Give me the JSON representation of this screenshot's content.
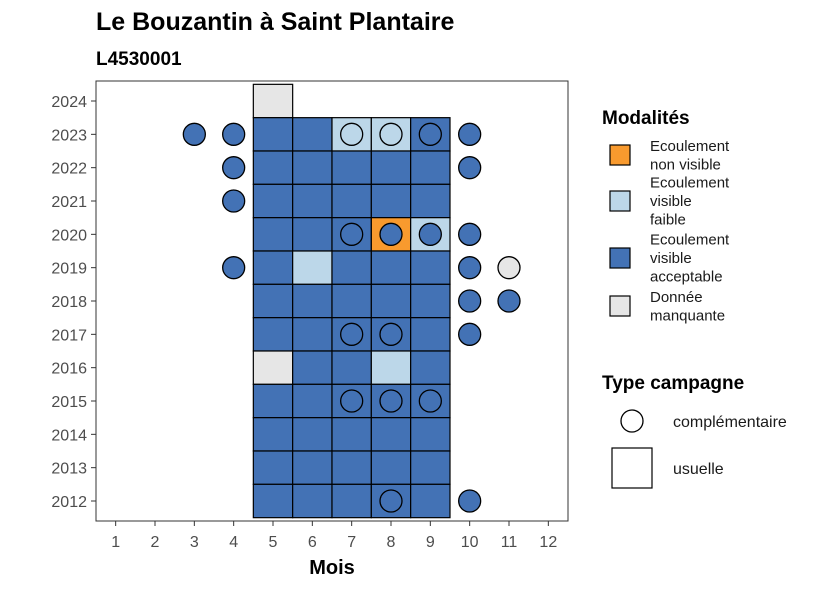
{
  "colors": {
    "non_visible": "#f89a2e",
    "visible_faible": "#bcd7e9",
    "visible_acceptable": "#4372b5",
    "manquante": "#e6e6e6"
  },
  "chart_data": {
    "type": "heatmap",
    "title": "Le Bouzantin à Saint Plantaire",
    "subtitle": "L4530001",
    "xlabel": "Mois",
    "ylabel": "",
    "x_ticks": [
      "1",
      "2",
      "3",
      "4",
      "5",
      "6",
      "7",
      "8",
      "9",
      "10",
      "11",
      "12"
    ],
    "y_ticks": [
      "2012",
      "2013",
      "2014",
      "2015",
      "2016",
      "2017",
      "2018",
      "2019",
      "2020",
      "2021",
      "2022",
      "2023",
      "2024"
    ],
    "xlim": [
      0.5,
      12.5
    ],
    "ylim": [
      2011.4,
      2024.6
    ],
    "legend": {
      "modalites_title": "Modalités",
      "modalites": [
        {
          "key": "non_visible",
          "lines": [
            "Ecoulement",
            "non visible"
          ]
        },
        {
          "key": "visible_faible",
          "lines": [
            "Ecoulement",
            "visible",
            "faible"
          ]
        },
        {
          "key": "visible_acceptable",
          "lines": [
            "Ecoulement",
            "visible",
            "acceptable"
          ]
        },
        {
          "key": "manquante",
          "lines": [
            "Donnée",
            "manquante"
          ]
        }
      ],
      "type_title": "Type campagne",
      "types": [
        {
          "key": "complementaire",
          "label": "complémentaire"
        },
        {
          "key": "usuelle",
          "label": "usuelle"
        }
      ]
    },
    "usuelle": [
      {
        "month": 5,
        "year": 2024,
        "modalite": "manquante"
      },
      {
        "month": 5,
        "year": 2023,
        "modalite": "visible_acceptable"
      },
      {
        "month": 6,
        "year": 2023,
        "modalite": "visible_acceptable"
      },
      {
        "month": 7,
        "year": 2023,
        "modalite": "visible_faible"
      },
      {
        "month": 8,
        "year": 2023,
        "modalite": "visible_faible"
      },
      {
        "month": 9,
        "year": 2023,
        "modalite": "visible_acceptable"
      },
      {
        "month": 5,
        "year": 2022,
        "modalite": "visible_acceptable"
      },
      {
        "month": 6,
        "year": 2022,
        "modalite": "visible_acceptable"
      },
      {
        "month": 7,
        "year": 2022,
        "modalite": "visible_acceptable"
      },
      {
        "month": 8,
        "year": 2022,
        "modalite": "visible_acceptable"
      },
      {
        "month": 9,
        "year": 2022,
        "modalite": "visible_acceptable"
      },
      {
        "month": 5,
        "year": 2021,
        "modalite": "visible_acceptable"
      },
      {
        "month": 6,
        "year": 2021,
        "modalite": "visible_acceptable"
      },
      {
        "month": 7,
        "year": 2021,
        "modalite": "visible_acceptable"
      },
      {
        "month": 8,
        "year": 2021,
        "modalite": "visible_acceptable"
      },
      {
        "month": 9,
        "year": 2021,
        "modalite": "visible_acceptable"
      },
      {
        "month": 5,
        "year": 2020,
        "modalite": "visible_acceptable"
      },
      {
        "month": 6,
        "year": 2020,
        "modalite": "visible_acceptable"
      },
      {
        "month": 7,
        "year": 2020,
        "modalite": "visible_acceptable"
      },
      {
        "month": 8,
        "year": 2020,
        "modalite": "non_visible"
      },
      {
        "month": 9,
        "year": 2020,
        "modalite": "visible_faible"
      },
      {
        "month": 5,
        "year": 2019,
        "modalite": "visible_acceptable"
      },
      {
        "month": 6,
        "year": 2019,
        "modalite": "visible_faible"
      },
      {
        "month": 7,
        "year": 2019,
        "modalite": "visible_acceptable"
      },
      {
        "month": 8,
        "year": 2019,
        "modalite": "visible_acceptable"
      },
      {
        "month": 9,
        "year": 2019,
        "modalite": "visible_acceptable"
      },
      {
        "month": 5,
        "year": 2018,
        "modalite": "visible_acceptable"
      },
      {
        "month": 6,
        "year": 2018,
        "modalite": "visible_acceptable"
      },
      {
        "month": 7,
        "year": 2018,
        "modalite": "visible_acceptable"
      },
      {
        "month": 8,
        "year": 2018,
        "modalite": "visible_acceptable"
      },
      {
        "month": 9,
        "year": 2018,
        "modalite": "visible_acceptable"
      },
      {
        "month": 5,
        "year": 2017,
        "modalite": "visible_acceptable"
      },
      {
        "month": 6,
        "year": 2017,
        "modalite": "visible_acceptable"
      },
      {
        "month": 7,
        "year": 2017,
        "modalite": "visible_acceptable"
      },
      {
        "month": 8,
        "year": 2017,
        "modalite": "visible_acceptable"
      },
      {
        "month": 9,
        "year": 2017,
        "modalite": "visible_acceptable"
      },
      {
        "month": 5,
        "year": 2016,
        "modalite": "manquante"
      },
      {
        "month": 6,
        "year": 2016,
        "modalite": "visible_acceptable"
      },
      {
        "month": 7,
        "year": 2016,
        "modalite": "visible_acceptable"
      },
      {
        "month": 8,
        "year": 2016,
        "modalite": "visible_faible"
      },
      {
        "month": 9,
        "year": 2016,
        "modalite": "visible_acceptable"
      },
      {
        "month": 5,
        "year": 2015,
        "modalite": "visible_acceptable"
      },
      {
        "month": 6,
        "year": 2015,
        "modalite": "visible_acceptable"
      },
      {
        "month": 7,
        "year": 2015,
        "modalite": "visible_acceptable"
      },
      {
        "month": 8,
        "year": 2015,
        "modalite": "visible_acceptable"
      },
      {
        "month": 9,
        "year": 2015,
        "modalite": "visible_acceptable"
      },
      {
        "month": 5,
        "year": 2014,
        "modalite": "visible_acceptable"
      },
      {
        "month": 6,
        "year": 2014,
        "modalite": "visible_acceptable"
      },
      {
        "month": 7,
        "year": 2014,
        "modalite": "visible_acceptable"
      },
      {
        "month": 8,
        "year": 2014,
        "modalite": "visible_acceptable"
      },
      {
        "month": 9,
        "year": 2014,
        "modalite": "visible_acceptable"
      },
      {
        "month": 5,
        "year": 2013,
        "modalite": "visible_acceptable"
      },
      {
        "month": 6,
        "year": 2013,
        "modalite": "visible_acceptable"
      },
      {
        "month": 7,
        "year": 2013,
        "modalite": "visible_acceptable"
      },
      {
        "month": 8,
        "year": 2013,
        "modalite": "visible_acceptable"
      },
      {
        "month": 9,
        "year": 2013,
        "modalite": "visible_acceptable"
      },
      {
        "month": 5,
        "year": 2012,
        "modalite": "visible_acceptable"
      },
      {
        "month": 6,
        "year": 2012,
        "modalite": "visible_acceptable"
      },
      {
        "month": 7,
        "year": 2012,
        "modalite": "visible_acceptable"
      },
      {
        "month": 8,
        "year": 2012,
        "modalite": "visible_acceptable"
      },
      {
        "month": 9,
        "year": 2012,
        "modalite": "visible_acceptable"
      }
    ],
    "complementaire": [
      {
        "month": 3,
        "year": 2023,
        "modalite": "visible_acceptable"
      },
      {
        "month": 4,
        "year": 2023,
        "modalite": "visible_acceptable"
      },
      {
        "month": 7,
        "year": 2023,
        "modalite": "visible_faible"
      },
      {
        "month": 8,
        "year": 2023,
        "modalite": "visible_faible"
      },
      {
        "month": 9,
        "year": 2023,
        "modalite": "visible_acceptable"
      },
      {
        "month": 10,
        "year": 2023,
        "modalite": "visible_acceptable"
      },
      {
        "month": 4,
        "year": 2022,
        "modalite": "visible_acceptable"
      },
      {
        "month": 10,
        "year": 2022,
        "modalite": "visible_acceptable"
      },
      {
        "month": 4,
        "year": 2021,
        "modalite": "visible_acceptable"
      },
      {
        "month": 7,
        "year": 2020,
        "modalite": "visible_acceptable"
      },
      {
        "month": 8,
        "year": 2020,
        "modalite": "visible_acceptable"
      },
      {
        "month": 9,
        "year": 2020,
        "modalite": "visible_acceptable"
      },
      {
        "month": 10,
        "year": 2020,
        "modalite": "visible_acceptable"
      },
      {
        "month": 4,
        "year": 2019,
        "modalite": "visible_acceptable"
      },
      {
        "month": 10,
        "year": 2019,
        "modalite": "visible_acceptable"
      },
      {
        "month": 11,
        "year": 2019,
        "modalite": "manquante"
      },
      {
        "month": 10,
        "year": 2018,
        "modalite": "visible_acceptable"
      },
      {
        "month": 11,
        "year": 2018,
        "modalite": "visible_acceptable"
      },
      {
        "month": 7,
        "year": 2017,
        "modalite": "visible_acceptable"
      },
      {
        "month": 8,
        "year": 2017,
        "modalite": "visible_acceptable"
      },
      {
        "month": 10,
        "year": 2017,
        "modalite": "visible_acceptable"
      },
      {
        "month": 7,
        "year": 2015,
        "modalite": "visible_acceptable"
      },
      {
        "month": 8,
        "year": 2015,
        "modalite": "visible_acceptable"
      },
      {
        "month": 9,
        "year": 2015,
        "modalite": "visible_acceptable"
      },
      {
        "month": 8,
        "year": 2012,
        "modalite": "visible_acceptable"
      },
      {
        "month": 10,
        "year": 2012,
        "modalite": "visible_acceptable"
      }
    ]
  }
}
